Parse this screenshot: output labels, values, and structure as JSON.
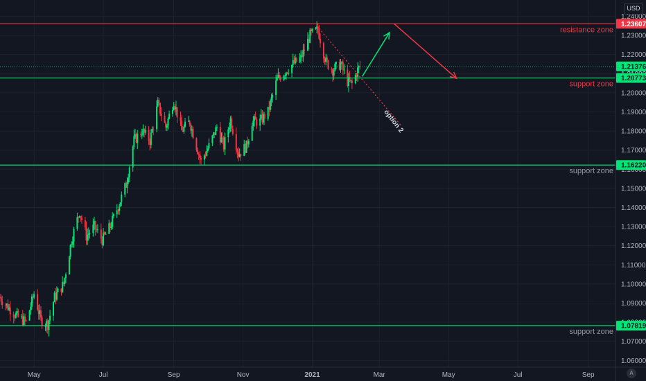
{
  "currency": "USD",
  "logo_text": "A",
  "chart_data": {
    "type": "candlestick",
    "instrument_currency": "USD",
    "ylim": [
      1.0565,
      1.2485
    ],
    "xlim": [
      "2020-04-01",
      "2021-09-25"
    ],
    "y_ticks": [
      "1.06000",
      "1.07000",
      "1.08000",
      "1.09000",
      "1.10000",
      "1.11000",
      "1.12000",
      "1.13000",
      "1.14000",
      "1.15000",
      "1.16000",
      "1.17000",
      "1.18000",
      "1.19000",
      "1.20000",
      "1.21000",
      "1.22000",
      "1.23000",
      "1.24000"
    ],
    "x_ticks": [
      {
        "date": "2020-05-01",
        "label": "May",
        "bold": false
      },
      {
        "date": "2020-07-01",
        "label": "Jul",
        "bold": false
      },
      {
        "date": "2020-09-01",
        "label": "Sep",
        "bold": false
      },
      {
        "date": "2020-11-01",
        "label": "Nov",
        "bold": false
      },
      {
        "date": "2021-01-01",
        "label": "2021",
        "bold": true
      },
      {
        "date": "2021-03-01",
        "label": "Mar",
        "bold": false
      },
      {
        "date": "2021-05-01",
        "label": "May",
        "bold": false
      },
      {
        "date": "2021-07-01",
        "label": "Jul",
        "bold": false
      },
      {
        "date": "2021-09-01",
        "label": "Sep",
        "bold": false
      }
    ],
    "price_anchors": [
      [
        "2020-04-01",
        1.093
      ],
      [
        "2020-04-08",
        1.088
      ],
      [
        "2020-04-16",
        1.083
      ],
      [
        "2020-04-24",
        1.08
      ],
      [
        "2020-05-01",
        1.095
      ],
      [
        "2020-05-07",
        1.081
      ],
      [
        "2020-05-13",
        1.079
      ],
      [
        "2020-05-19",
        1.093
      ],
      [
        "2020-05-27",
        1.1
      ],
      [
        "2020-06-03",
        1.123
      ],
      [
        "2020-06-10",
        1.138
      ],
      [
        "2020-06-16",
        1.125
      ],
      [
        "2020-06-23",
        1.13
      ],
      [
        "2020-06-30",
        1.123
      ],
      [
        "2020-07-07",
        1.13
      ],
      [
        "2020-07-15",
        1.142
      ],
      [
        "2020-07-21",
        1.152
      ],
      [
        "2020-07-28",
        1.175
      ],
      [
        "2020-08-04",
        1.18
      ],
      [
        "2020-08-11",
        1.175
      ],
      [
        "2020-08-18",
        1.194
      ],
      [
        "2020-08-25",
        1.182
      ],
      [
        "2020-09-01",
        1.196
      ],
      [
        "2020-09-08",
        1.18
      ],
      [
        "2020-09-15",
        1.185
      ],
      [
        "2020-09-25",
        1.164
      ],
      [
        "2020-10-02",
        1.172
      ],
      [
        "2020-10-09",
        1.182
      ],
      [
        "2020-10-15",
        1.172
      ],
      [
        "2020-10-21",
        1.186
      ],
      [
        "2020-10-28",
        1.168
      ],
      [
        "2020-11-04",
        1.172
      ],
      [
        "2020-11-09",
        1.185
      ],
      [
        "2020-11-16",
        1.185
      ],
      [
        "2020-11-23",
        1.19
      ],
      [
        "2020-12-01",
        1.207
      ],
      [
        "2020-12-08",
        1.211
      ],
      [
        "2020-12-15",
        1.215
      ],
      [
        "2020-12-22",
        1.218
      ],
      [
        "2020-12-30",
        1.23
      ],
      [
        "2021-01-06",
        1.233
      ],
      [
        "2021-01-13",
        1.216
      ],
      [
        "2021-01-19",
        1.212
      ],
      [
        "2021-01-26",
        1.215
      ],
      [
        "2021-02-01",
        1.206
      ],
      [
        "2021-02-05",
        1.2045
      ],
      [
        "2021-02-10",
        1.212
      ],
      [
        "2021-02-12",
        1.2135
      ]
    ],
    "horizontal_levels": [
      {
        "price": 1.23607,
        "label": "1.23607",
        "color": "#f23645",
        "zone": "resistance zone"
      },
      {
        "price": 1.20773,
        "label": "1.20773",
        "color": "#00e676",
        "zone": "support zone"
      },
      {
        "price": 1.1622,
        "label": "1.16220",
        "color": "#00e676",
        "zone": "support zone"
      },
      {
        "price": 1.07819,
        "label": "1.07819",
        "color": "#00e676",
        "zone": "support zone"
      }
    ],
    "last_price": {
      "price": 1.21376,
      "label": "1.21376",
      "color": "#00e676"
    },
    "hidden_price_label": "1.21000",
    "annotations": {
      "up_arrow": {
        "from": [
          "2021-02-14",
          1.2085
        ],
        "to": [
          "2021-03-10",
          1.2315
        ],
        "color": "#00e676"
      },
      "down_arrow": {
        "from": [
          "2021-03-14",
          1.2361
        ],
        "to": [
          "2021-05-08",
          1.2075
        ],
        "color": "#f23645"
      },
      "dotted_line": {
        "from": [
          "2021-01-05",
          1.235
        ],
        "to": [
          "2021-03-20",
          1.183
        ],
        "color": "#f23645"
      },
      "option_label": {
        "text": "option 2",
        "at": [
          "2021-03-05",
          1.19
        ],
        "angle": 52
      }
    },
    "colors": {
      "up": "#00e676",
      "down": "#f23645",
      "background": "#131722",
      "grid": "#1e222d"
    }
  }
}
